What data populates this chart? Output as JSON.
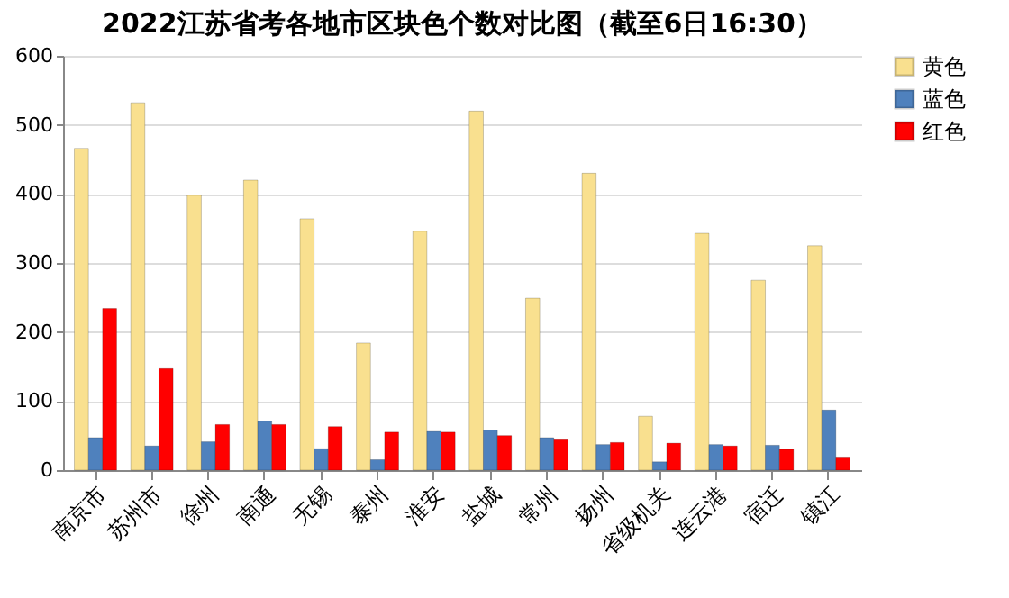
{
  "chart_data": {
    "type": "bar",
    "title": "2022江苏省考各地市区块色个数对比图（截至6日16:30）",
    "categories": [
      "南京市",
      "苏州市",
      "徐州",
      "南通",
      "无锡",
      "泰州",
      "淮安",
      "盐城",
      "常州",
      "扬州",
      "省级机关",
      "连云港",
      "宿迁",
      "镇江"
    ],
    "series": [
      {
        "name": "黄色",
        "color": "#f9e08f",
        "values": [
          466,
          532,
          398,
          420,
          364,
          184,
          346,
          520,
          249,
          430,
          78,
          343,
          275,
          325
        ]
      },
      {
        "name": "蓝色",
        "color": "#4f81bd",
        "values": [
          47,
          35,
          41,
          71,
          31,
          15,
          56,
          58,
          47,
          37,
          12,
          37,
          36,
          87
        ]
      },
      {
        "name": "红色",
        "color": "#ff0000",
        "values": [
          234,
          147,
          66,
          66,
          63,
          55,
          55,
          50,
          44,
          40,
          39,
          35,
          30,
          19
        ]
      }
    ],
    "ylim": [
      0,
      600
    ],
    "yticks": [
      0,
      100,
      200,
      300,
      400,
      500,
      600
    ],
    "grid": "y",
    "legend": "right"
  }
}
